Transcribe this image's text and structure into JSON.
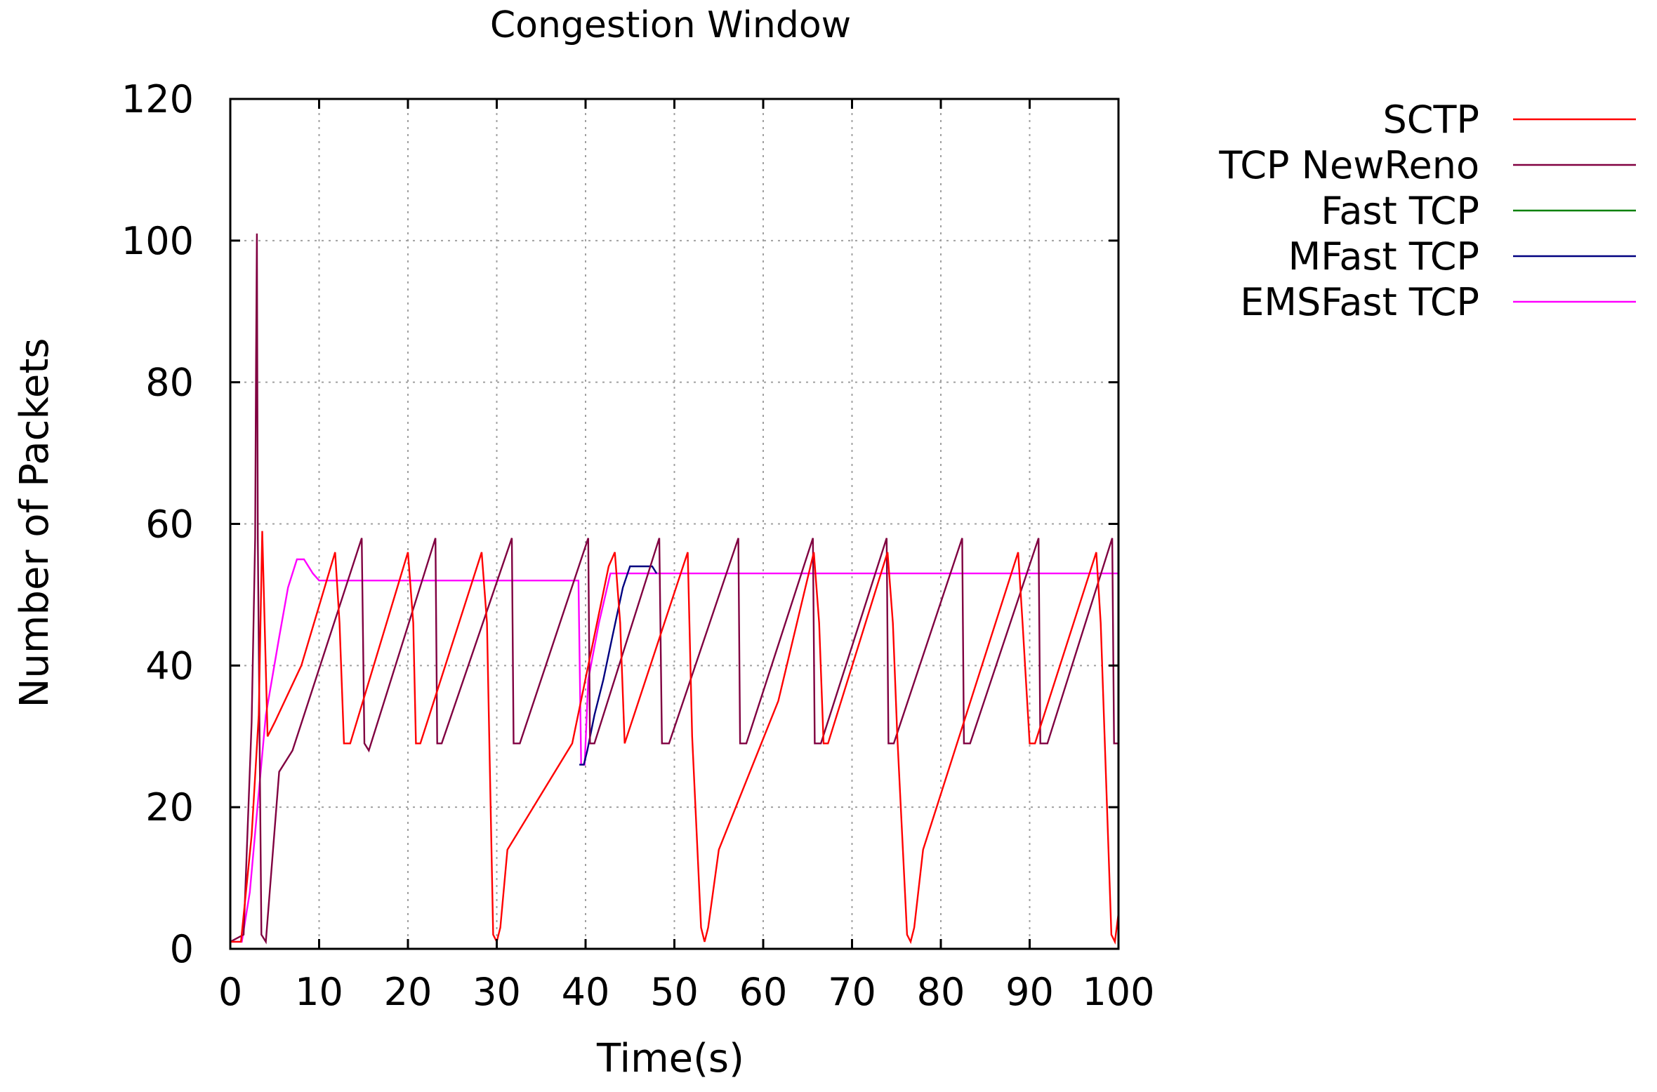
{
  "chart_data": {
    "type": "line",
    "title": "Congestion Window",
    "xlabel": "Time(s)",
    "ylabel": "Number of Packets",
    "xlim": [
      0,
      100
    ],
    "ylim": [
      0,
      120
    ],
    "xticks": [
      0,
      10,
      20,
      30,
      40,
      50,
      60,
      70,
      80,
      90,
      100
    ],
    "yticks": [
      0,
      20,
      40,
      60,
      80,
      100,
      120
    ],
    "grid": true,
    "legend_position": "top-right outside",
    "series": [
      {
        "name": "SCTP",
        "color": "#ff0000",
        "points": [
          [
            0,
            1
          ],
          [
            1.2,
            1
          ],
          [
            2.4,
            16
          ],
          [
            3.2,
            33
          ],
          [
            3.6,
            59
          ],
          [
            4.2,
            30
          ],
          [
            5,
            32
          ],
          [
            8,
            40
          ],
          [
            11.8,
            56
          ],
          [
            12.3,
            46
          ],
          [
            12.8,
            29
          ],
          [
            13.5,
            29
          ],
          [
            20,
            56
          ],
          [
            20.6,
            46
          ],
          [
            20.9,
            29
          ],
          [
            21.4,
            29
          ],
          [
            28.3,
            56
          ],
          [
            28.9,
            46
          ],
          [
            29.6,
            2
          ],
          [
            30,
            1
          ],
          [
            30.4,
            3
          ],
          [
            31.2,
            14
          ],
          [
            38.5,
            29
          ],
          [
            42.6,
            54
          ],
          [
            43.3,
            56
          ],
          [
            43.9,
            46
          ],
          [
            44.4,
            29
          ],
          [
            51.5,
            56
          ],
          [
            52,
            30
          ],
          [
            53,
            3
          ],
          [
            53.4,
            1
          ],
          [
            53.8,
            3
          ],
          [
            55,
            14
          ],
          [
            61.7,
            35
          ],
          [
            65.7,
            56
          ],
          [
            66.3,
            46
          ],
          [
            66.8,
            29
          ],
          [
            67.3,
            29
          ],
          [
            74,
            56
          ],
          [
            74.6,
            46
          ],
          [
            75.1,
            30
          ],
          [
            76.2,
            2
          ],
          [
            76.6,
            1
          ],
          [
            77,
            3
          ],
          [
            78,
            14
          ],
          [
            88.7,
            56
          ],
          [
            89.2,
            46
          ],
          [
            90,
            29
          ],
          [
            90.6,
            29
          ],
          [
            97.5,
            56
          ],
          [
            98,
            46
          ],
          [
            99.2,
            2
          ],
          [
            99.6,
            1
          ],
          [
            100,
            5
          ]
        ]
      },
      {
        "name": "TCP NewReno",
        "color": "#800040",
        "points": [
          [
            0,
            1
          ],
          [
            1.5,
            2
          ],
          [
            2.4,
            32
          ],
          [
            2.8,
            58
          ],
          [
            2.9,
            83
          ],
          [
            3,
            101
          ],
          [
            3.1,
            58
          ],
          [
            3.3,
            30
          ],
          [
            3.5,
            2
          ],
          [
            4,
            1
          ],
          [
            5.5,
            25
          ],
          [
            7,
            28
          ],
          [
            14.8,
            58
          ],
          [
            15.1,
            29
          ],
          [
            15.6,
            28
          ],
          [
            23.1,
            58
          ],
          [
            23.3,
            29
          ],
          [
            23.8,
            29
          ],
          [
            31.7,
            58
          ],
          [
            31.9,
            29
          ],
          [
            32.6,
            29
          ],
          [
            40.3,
            58
          ],
          [
            40.5,
            29
          ],
          [
            41,
            29
          ],
          [
            48.3,
            58
          ],
          [
            48.6,
            29
          ],
          [
            49.4,
            29
          ],
          [
            57.2,
            58
          ],
          [
            57.4,
            29
          ],
          [
            58.1,
            29
          ],
          [
            65.6,
            58
          ],
          [
            65.8,
            29
          ],
          [
            66.5,
            29
          ],
          [
            73.9,
            58
          ],
          [
            74.1,
            29
          ],
          [
            74.7,
            29
          ],
          [
            82.4,
            58
          ],
          [
            82.6,
            29
          ],
          [
            83.3,
            29
          ],
          [
            91,
            58
          ],
          [
            91.2,
            29
          ],
          [
            92,
            29
          ],
          [
            99.3,
            58
          ],
          [
            99.5,
            29
          ],
          [
            100,
            29
          ]
        ]
      },
      {
        "name": "Fast TCP",
        "color": "#008000",
        "points": []
      },
      {
        "name": "MFast TCP",
        "color": "#000080",
        "points": [
          [
            39.3,
            26
          ],
          [
            39.8,
            26
          ],
          [
            40.2,
            28
          ],
          [
            41,
            33
          ],
          [
            42,
            38
          ],
          [
            43,
            44
          ],
          [
            44.2,
            51
          ],
          [
            45,
            54
          ],
          [
            47.5,
            54
          ],
          [
            48,
            53
          ]
        ]
      },
      {
        "name": "EMSFast TCP",
        "color": "#ff00ff",
        "points": [
          [
            0,
            1
          ],
          [
            1.3,
            1
          ],
          [
            2.2,
            8
          ],
          [
            3.2,
            22
          ],
          [
            4,
            33
          ],
          [
            5.5,
            44
          ],
          [
            6.5,
            51
          ],
          [
            7.5,
            55
          ],
          [
            8.3,
            55
          ],
          [
            9.3,
            53
          ],
          [
            10,
            52
          ],
          [
            39.2,
            52
          ],
          [
            39.5,
            26
          ],
          [
            39.9,
            26
          ],
          [
            40.3,
            38
          ],
          [
            41.5,
            46
          ],
          [
            42.8,
            53
          ],
          [
            100,
            53
          ]
        ]
      }
    ]
  }
}
